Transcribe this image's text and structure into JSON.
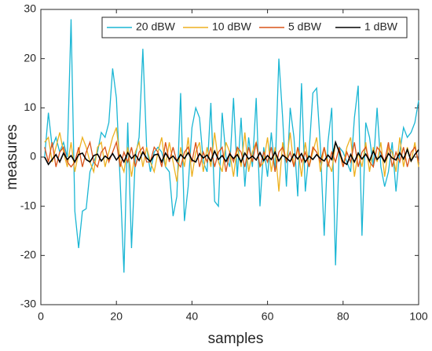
{
  "chart_data": {
    "type": "line",
    "x_label": "samples",
    "y_label": "measures",
    "x": [
      1,
      2,
      3,
      4,
      5,
      6,
      7,
      8,
      9,
      10,
      11,
      12,
      13,
      14,
      15,
      16,
      17,
      18,
      19,
      20,
      21,
      22,
      23,
      24,
      25,
      26,
      27,
      28,
      29,
      30,
      31,
      32,
      33,
      34,
      35,
      36,
      37,
      38,
      39,
      40,
      41,
      42,
      43,
      44,
      45,
      46,
      47,
      48,
      49,
      50,
      51,
      52,
      53,
      54,
      55,
      56,
      57,
      58,
      59,
      60,
      61,
      62,
      63,
      64,
      65,
      66,
      67,
      68,
      69,
      70,
      71,
      72,
      73,
      74,
      75,
      76,
      77,
      78,
      79,
      80,
      81,
      82,
      83,
      84,
      85,
      86,
      87,
      88,
      89,
      90,
      91,
      92,
      93,
      94,
      95,
      96,
      97,
      98,
      99,
      100
    ],
    "series": [
      {
        "name": "20 dBW",
        "color": "#1ab6d4",
        "values": [
          0,
          9,
          2,
          4,
          1,
          3,
          0,
          28,
          -11,
          -18.5,
          -11,
          -10.5,
          -3,
          -1,
          1,
          5,
          4,
          7,
          18,
          12,
          -5,
          -23.5,
          7,
          -18.5,
          0,
          4,
          22,
          2,
          -3,
          1,
          2,
          1,
          -2,
          -3,
          -12,
          -8,
          13,
          -13,
          -6,
          6,
          10,
          8,
          -1,
          -3,
          11,
          -9,
          -10,
          9,
          0,
          -2,
          12,
          -4,
          8,
          -6,
          4,
          -2,
          12,
          -10,
          2,
          -4,
          5,
          -3,
          20,
          8,
          -6,
          10,
          4,
          -8,
          15,
          -7,
          1,
          13,
          14,
          2,
          -16,
          3,
          10,
          -22,
          2,
          1,
          -1,
          -3,
          8,
          14.5,
          -16,
          7,
          4,
          -2,
          10,
          -2,
          -6,
          -3,
          3,
          -7,
          1,
          6,
          4,
          5,
          7,
          11.5
        ]
      },
      {
        "name": "10 dBW",
        "color": "#edb120",
        "values": [
          3,
          4,
          -1,
          2,
          5,
          1,
          -2,
          3,
          -3,
          1,
          4,
          2,
          -1,
          -3,
          2,
          3,
          -2,
          1,
          4,
          6,
          -1,
          -3,
          2,
          -4,
          1,
          3,
          -2,
          2,
          -1,
          -3,
          1,
          4,
          -2,
          3,
          -1,
          -5,
          2,
          -2,
          4,
          -4,
          1,
          3,
          -3,
          2,
          -2,
          5,
          -1,
          -3,
          3,
          1,
          -4,
          2,
          -2,
          5,
          -3,
          1,
          3,
          -2,
          -1,
          4,
          -3,
          2,
          -7,
          3,
          -1,
          5,
          -2,
          2,
          -4,
          3,
          -2,
          1,
          4,
          -3,
          2,
          -1,
          -3,
          3,
          1,
          -2,
          2,
          4,
          -4,
          1,
          -2,
          3,
          -3,
          2,
          -1,
          3,
          -4,
          2,
          1,
          -3,
          4,
          -2,
          2,
          -1,
          3,
          -2
        ]
      },
      {
        "name": "5 dBW",
        "color": "#d95319",
        "values": [
          2,
          -1,
          3,
          -2,
          1,
          2,
          -1,
          -2,
          -1,
          2,
          -2,
          1,
          3,
          -1,
          -2,
          1,
          2,
          -1,
          1,
          3,
          -2,
          1,
          -1,
          2,
          -2,
          1,
          2,
          -1,
          -1,
          2,
          1,
          -2,
          3,
          -1,
          2,
          -1,
          -2,
          1,
          2,
          -1,
          3,
          -2,
          1,
          -1,
          2,
          -2,
          1,
          2,
          -3,
          1,
          -1,
          2,
          1,
          -2,
          2,
          -1,
          3,
          -2,
          1,
          -1,
          2,
          -3,
          1,
          2,
          -1,
          1,
          -2,
          2,
          -1,
          1,
          -2,
          2,
          1,
          -1,
          2,
          -2,
          1,
          -1,
          2,
          -2,
          1,
          -1,
          3,
          -2,
          1,
          2,
          -1,
          -2,
          2,
          1,
          -1,
          3,
          -2,
          1,
          -1,
          2,
          -2,
          1,
          2,
          -1
        ]
      },
      {
        "name": "1 dBW",
        "color": "#000000",
        "values": [
          0,
          -1.5,
          -0.5,
          0.5,
          -1,
          0.8,
          -0.5,
          0.3,
          -1,
          0.5,
          0.8,
          -0.5,
          -1,
          0.3,
          0.6,
          -0.8,
          0.2,
          -0.4,
          0.7,
          -0.6,
          0.4,
          -1,
          0.9,
          -0.3,
          0.5,
          -0.7,
          1,
          -0.2,
          -0.9,
          0.4,
          0.6,
          -1,
          0.8,
          -0.4,
          0.2,
          -0.8,
          0.5,
          -0.3,
          0.9,
          -0.6,
          -1,
          0.7,
          -0.2,
          0.4,
          -0.8,
          1.2,
          -0.5,
          0.3,
          -0.9,
          0.6,
          -0.3,
          0.5,
          -1,
          0.8,
          -0.4,
          0.2,
          -0.6,
          0.9,
          -0.7,
          0.3,
          -0.5,
          1,
          -0.8,
          0.4,
          -0.2,
          -0.9,
          0.6,
          -0.4,
          0.7,
          -1,
          0.2,
          -0.5,
          0.5,
          -0.3,
          -0.8,
          0.4,
          -0.5,
          3,
          1,
          -1,
          -1.5,
          0.5,
          -1,
          0.8,
          -0.4,
          0.6,
          -0.8,
          1.2,
          -0.5,
          0.3,
          -1,
          0.7,
          -0.2,
          -0.6,
          0.9,
          -0.4,
          1.5,
          -0.8,
          0.5,
          1.5
        ]
      }
    ],
    "xlim": [
      0,
      100
    ],
    "xticks": [
      0,
      20,
      40,
      60,
      80,
      100
    ],
    "ylim": [
      -30,
      30
    ],
    "yticks": [
      -30,
      -20,
      -10,
      0,
      10,
      20,
      30
    ],
    "legend": "top-right"
  }
}
